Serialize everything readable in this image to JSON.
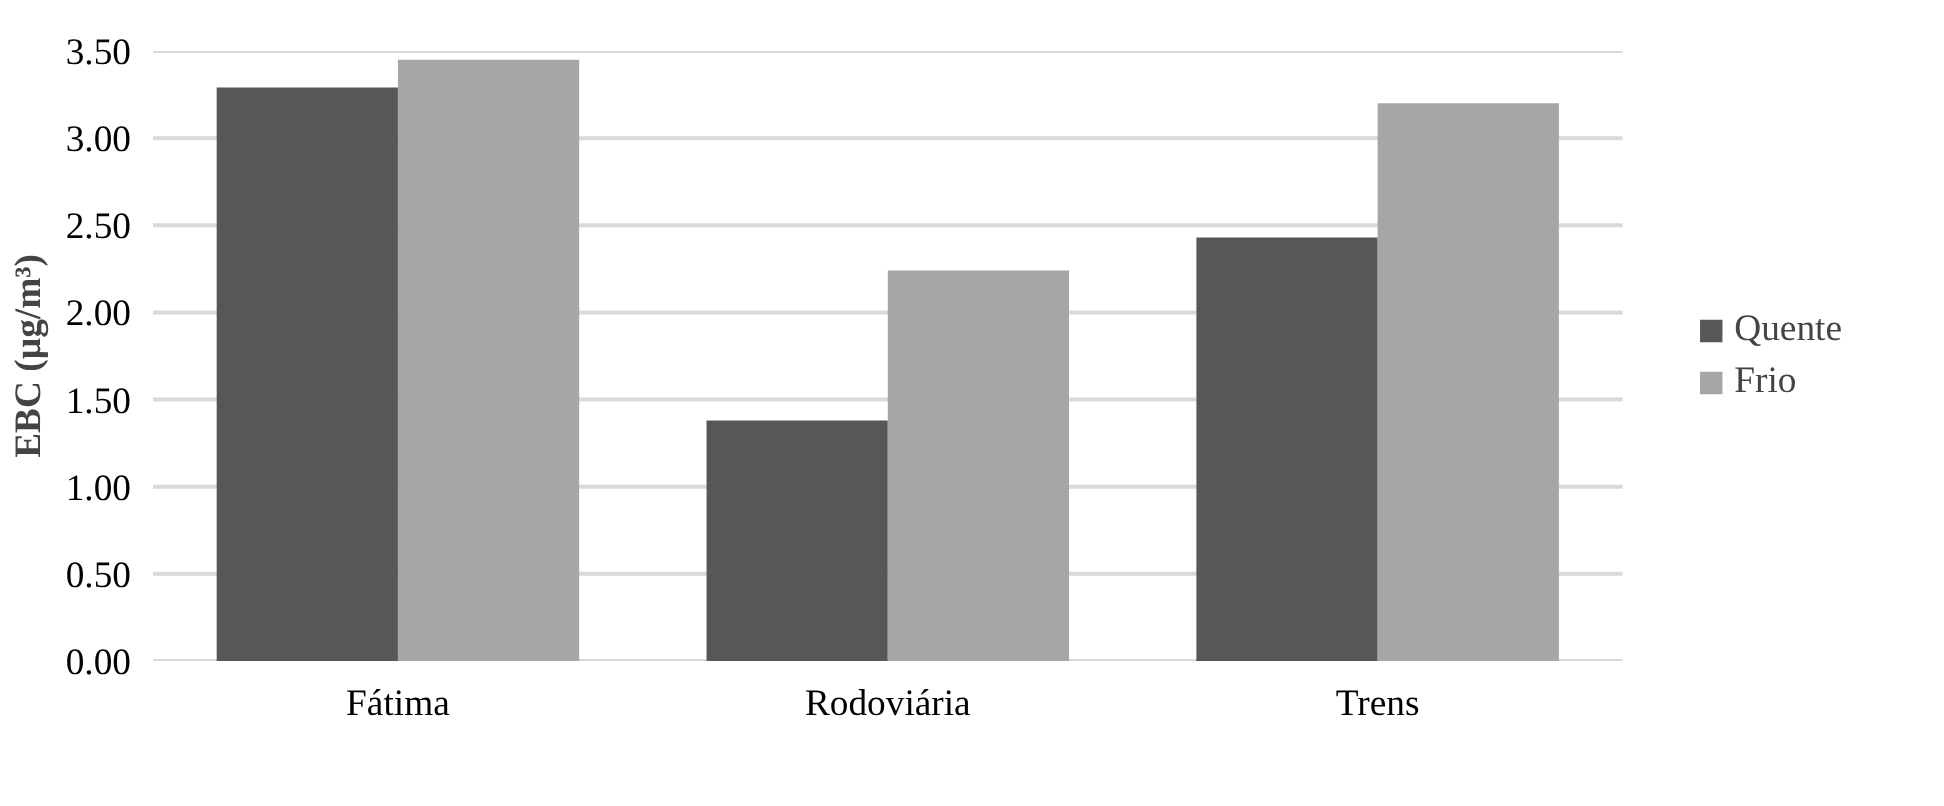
{
  "chart_data": {
    "type": "bar",
    "ylabel": "EBC (µg/m³)",
    "categories": [
      "Fátima",
      "Rodoviária",
      "Trens"
    ],
    "series": [
      {
        "name": "Quente",
        "color": "#575757",
        "values": [
          3.29,
          1.38,
          2.43
        ]
      },
      {
        "name": "Frio",
        "color": "#a6a6a6",
        "values": [
          3.45,
          2.24,
          3.2
        ]
      }
    ],
    "ylim": [
      0,
      3.5
    ],
    "yticks": [
      {
        "value": 0,
        "label": "0.00"
      },
      {
        "value": 0.5,
        "label": "0.50"
      },
      {
        "value": 1,
        "label": "1.00"
      },
      {
        "value": 1.5,
        "label": "1.50"
      },
      {
        "value": 2,
        "label": "2.00"
      },
      {
        "value": 2.5,
        "label": "2.50"
      },
      {
        "value": 3,
        "label": "3.00"
      },
      {
        "value": 3.5,
        "label": "3.50"
      }
    ],
    "grid": "y",
    "legend": "right"
  }
}
